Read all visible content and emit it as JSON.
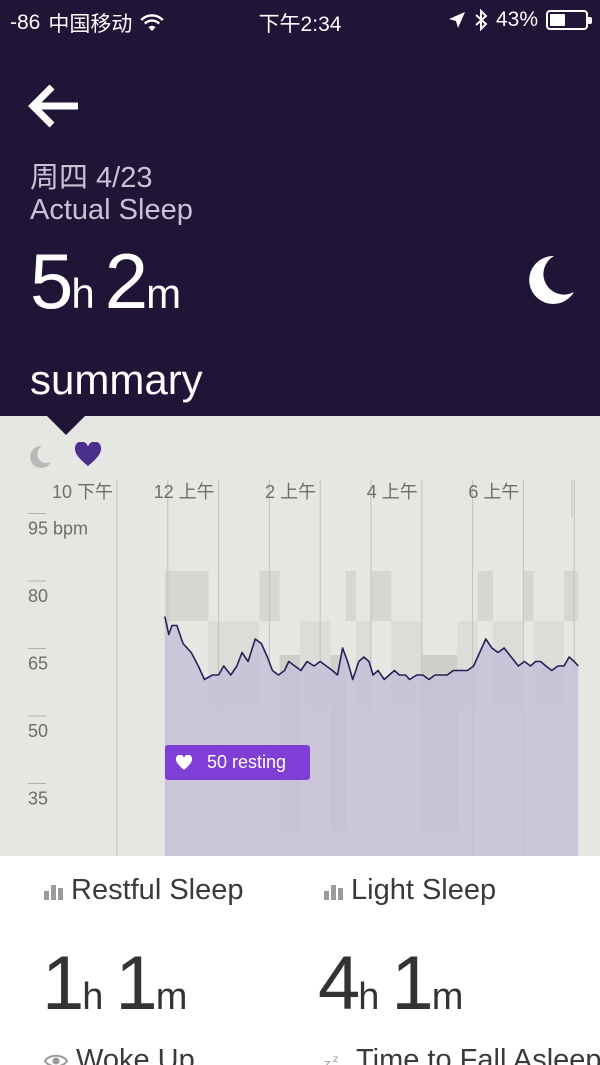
{
  "status_bar": {
    "signal": "-86",
    "carrier": "中国移动",
    "time": "下午2:34",
    "battery": "43%",
    "battery_level": 0.43
  },
  "header": {
    "date": "周四 4/23",
    "sleep_type": "Actual Sleep",
    "duration": {
      "hours": "5",
      "hours_unit": "h",
      "minutes": "2",
      "minutes_unit": "m"
    },
    "section_title": "summary",
    "background": "#201536"
  },
  "chart_data": {
    "type": "line",
    "x_tick_labels": [
      "10 下午",
      "12 上午",
      "2 上午",
      "4 上午",
      "6 上午"
    ],
    "x_ticks_hours": [
      22,
      24,
      26,
      28,
      30
    ],
    "x_range": [
      22,
      31.1
    ],
    "y_axis_unit": "bpm",
    "y_ticks": [
      95,
      80,
      65,
      50,
      35
    ],
    "y_range": [
      30,
      110
    ],
    "series": [
      {
        "kind": "heart-rate",
        "color": "#2a1f55",
        "fill": "#c7bfd8",
        "x": [
          22.94,
          23.02,
          23.08,
          23.18,
          23.3,
          23.38,
          23.46,
          23.6,
          23.72,
          23.88,
          24.0,
          24.1,
          24.24,
          24.36,
          24.46,
          24.58,
          24.72,
          24.84,
          24.96,
          25.06,
          25.18,
          25.3,
          25.38,
          25.5,
          25.62,
          25.74,
          25.88,
          26.0,
          26.12,
          26.24,
          26.34,
          26.44,
          26.54,
          26.64,
          26.76,
          26.86,
          26.96,
          27.04,
          27.14,
          27.26,
          27.36,
          27.46,
          27.56,
          27.68,
          27.76,
          27.9,
          28.02,
          28.14,
          28.26,
          28.36,
          28.5,
          28.62,
          28.76,
          28.9,
          29.02,
          29.14,
          29.26,
          29.38,
          29.5,
          29.62,
          29.76,
          29.9,
          30.02,
          30.14,
          30.24,
          30.34,
          30.44,
          30.56,
          30.68,
          30.8,
          30.9,
          31.0,
          31.08
        ],
        "bpm": [
          77,
          73,
          75,
          75,
          71,
          70,
          69,
          66,
          63,
          64,
          64,
          66,
          64,
          66,
          69,
          67,
          72,
          71,
          68,
          65,
          64,
          65,
          67,
          66,
          65,
          67,
          66,
          67,
          66,
          65,
          64,
          70,
          67,
          63,
          67,
          68,
          67,
          64,
          65,
          63,
          64,
          65,
          64,
          64,
          63,
          64,
          64,
          63,
          64,
          64,
          64,
          65,
          65,
          65,
          66,
          69,
          72,
          70,
          69,
          70,
          68,
          66,
          67,
          66,
          67,
          67,
          66,
          65,
          66,
          66,
          68,
          67,
          66
        ]
      }
    ],
    "sleep_bands": [
      {
        "start": 22.94,
        "end": 23.8,
        "level": "awake"
      },
      {
        "start": 23.8,
        "end": 24.8,
        "level": "light"
      },
      {
        "start": 24.8,
        "end": 25.2,
        "level": "awake"
      },
      {
        "start": 25.2,
        "end": 25.6,
        "level": "restful"
      },
      {
        "start": 25.6,
        "end": 26.2,
        "level": "light"
      },
      {
        "start": 26.2,
        "end": 26.5,
        "level": "restful"
      },
      {
        "start": 26.5,
        "end": 26.7,
        "level": "awake"
      },
      {
        "start": 26.7,
        "end": 27.0,
        "level": "light"
      },
      {
        "start": 27.0,
        "end": 27.4,
        "level": "awake"
      },
      {
        "start": 27.4,
        "end": 28.0,
        "level": "light"
      },
      {
        "start": 28.0,
        "end": 28.7,
        "level": "restful"
      },
      {
        "start": 28.7,
        "end": 29.1,
        "level": "light"
      },
      {
        "start": 29.1,
        "end": 29.4,
        "level": "awake"
      },
      {
        "start": 29.4,
        "end": 30.0,
        "level": "light"
      },
      {
        "start": 30.0,
        "end": 30.2,
        "level": "awake"
      },
      {
        "start": 30.2,
        "end": 30.8,
        "level": "light"
      },
      {
        "start": 30.8,
        "end": 31.08,
        "level": "awake"
      }
    ],
    "resting_label": "50 resting",
    "resting_bpm": 50
  },
  "stats": [
    {
      "label": "Restful Sleep",
      "icon": "bar-chart-icon",
      "hours": "1",
      "hours_unit": "h",
      "minutes": "1",
      "minutes_unit": "m"
    },
    {
      "label": "Light Sleep",
      "icon": "bar-chart-icon",
      "hours": "4",
      "hours_unit": "h",
      "minutes": "1",
      "minutes_unit": "m"
    },
    {
      "label": "Woke Up",
      "icon": "eye-icon"
    },
    {
      "label": "Time to Fall Asleep",
      "icon": "zzz-icon"
    }
  ]
}
